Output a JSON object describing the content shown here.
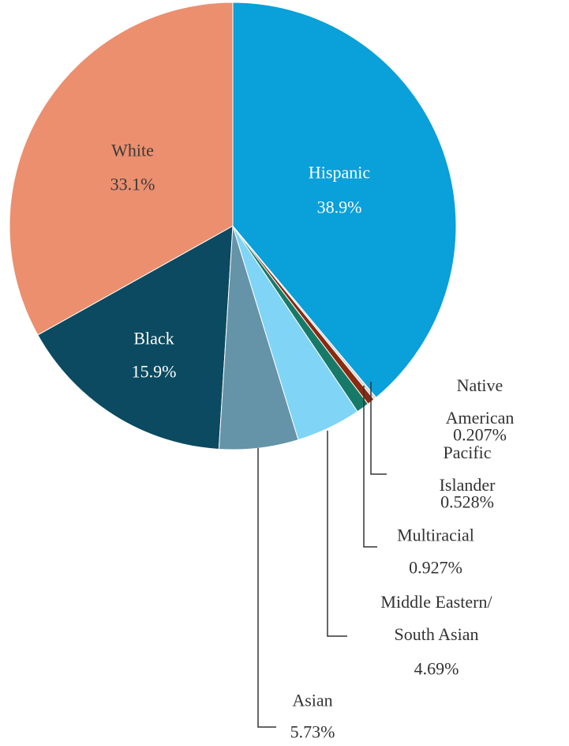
{
  "chart_data": {
    "type": "pie",
    "categories": [
      "Hispanic",
      "Native American",
      "Pacific Islander",
      "Multiracial",
      "Middle Eastern/ South Asian",
      "Asian",
      "Black",
      "White"
    ],
    "values": [
      38.9,
      0.207,
      0.528,
      0.927,
      4.69,
      5.73,
      15.9,
      33.1
    ],
    "value_labels": [
      "38.9%",
      "0.207%",
      "0.528%",
      "0.927%",
      "4.69%",
      "5.73%",
      "15.9%",
      "33.1%"
    ],
    "colors": [
      "#0aa0d9",
      "#d6d6d6",
      "#8a2a10",
      "#177a68",
      "#80d4f6",
      "#6593a8",
      "#0b4a60",
      "#eb8f6f"
    ]
  }
}
